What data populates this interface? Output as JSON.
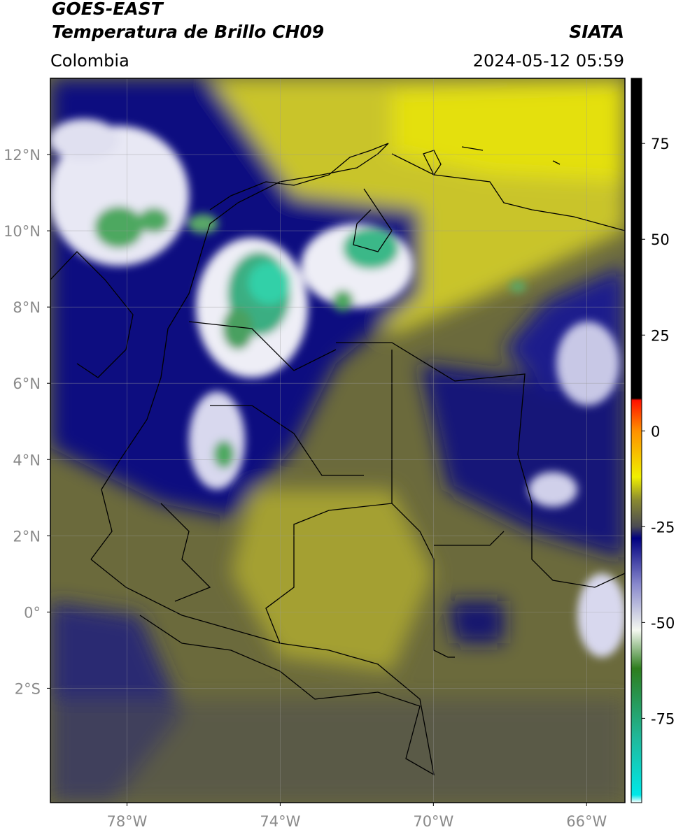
{
  "header": {
    "title": "GOES-EAST",
    "subtitle": "Temperatura de Brillo CH09",
    "source": "SIATA",
    "region": "Colombia",
    "datetime": "2024-05-12 05:59"
  },
  "map": {
    "xlim": [
      -80,
      -65
    ],
    "ylim": [
      -5,
      14
    ],
    "xticks": [
      {
        "value": -78,
        "label": "78°W"
      },
      {
        "value": -74,
        "label": "74°W"
      },
      {
        "value": -70,
        "label": "70°W"
      },
      {
        "value": -66,
        "label": "66°W"
      }
    ],
    "yticks": [
      {
        "value": 12,
        "label": "12°N"
      },
      {
        "value": 10,
        "label": "10°N"
      },
      {
        "value": 8,
        "label": "8°N"
      },
      {
        "value": 6,
        "label": "6°N"
      },
      {
        "value": 4,
        "label": "4°N"
      },
      {
        "value": 2,
        "label": "2°N"
      },
      {
        "value": 0,
        "label": "0°"
      },
      {
        "value": -2,
        "label": "2°S"
      }
    ],
    "grid": true
  },
  "colorbar": {
    "lim": [
      -97,
      92
    ],
    "ticks": [
      75,
      50,
      25,
      0,
      -25,
      -50,
      -75
    ],
    "stops": [
      {
        "value": -97,
        "color": "#ffffff"
      },
      {
        "value": -95,
        "color": "#00e8e8"
      },
      {
        "value": -80,
        "color": "#20b89a"
      },
      {
        "value": -62,
        "color": "#2e7d1e"
      },
      {
        "value": -52,
        "color": "#f4f8f0"
      },
      {
        "value": -40,
        "color": "#8888cc"
      },
      {
        "value": -28,
        "color": "#000080"
      },
      {
        "value": -25,
        "color": "#4a4a52"
      },
      {
        "value": -18,
        "color": "#8a8a30"
      },
      {
        "value": -12,
        "color": "#f0f000"
      },
      {
        "value": 0,
        "color": "#ff9000"
      },
      {
        "value": 8,
        "color": "#ff1000"
      },
      {
        "value": 8.5,
        "color": "#000000"
      },
      {
        "value": 92,
        "color": "#000000"
      }
    ]
  }
}
